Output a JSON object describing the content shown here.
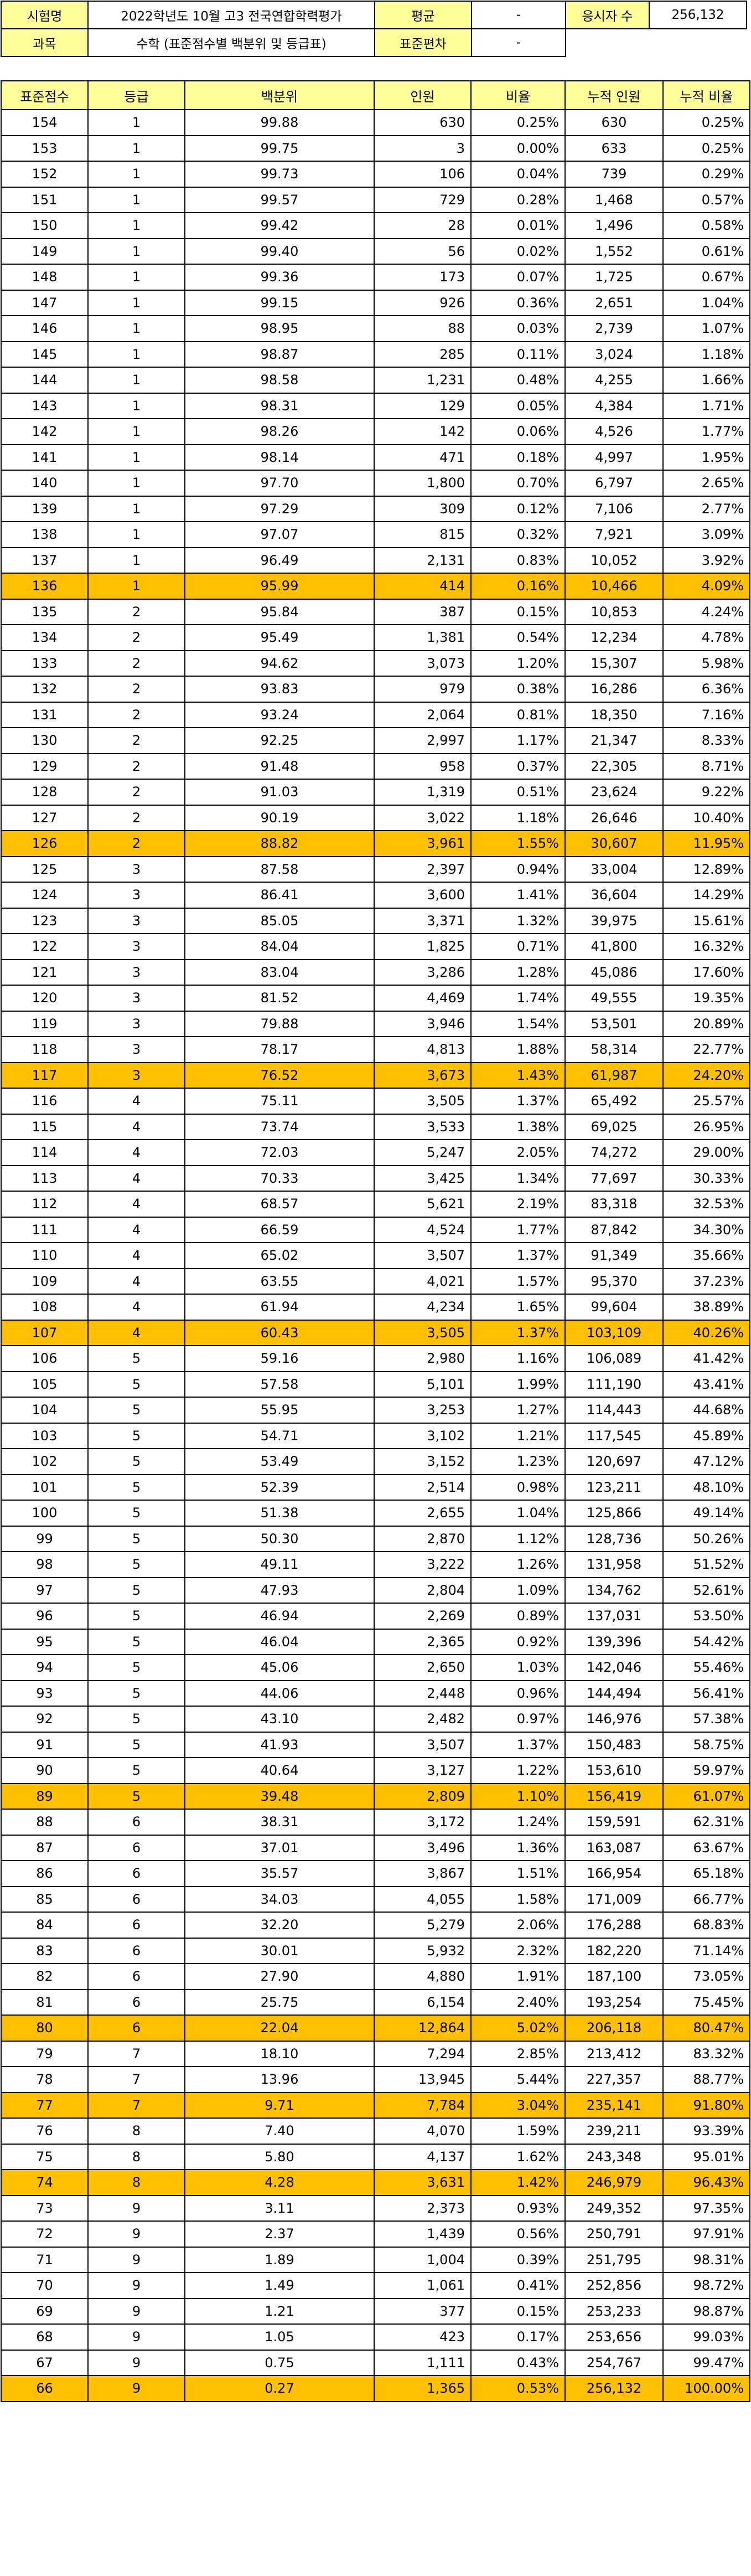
{
  "info": {
    "exam_label": "시험명",
    "exam_value": "2022학년도 10월 고3 전국연합학력평가",
    "mean_label": "평균",
    "mean_value": "-",
    "takers_label": "응시자 수",
    "takers_value": "256,132",
    "subject_label": "과목",
    "subject_value": "수학 (표준점수별 백분위 및 등급표)",
    "sd_label": "표준편차",
    "sd_value": "-"
  },
  "headers": [
    "표준점수",
    "등급",
    "백분위",
    "인원",
    "비율",
    "누적 인원",
    "누적 비율"
  ],
  "highlight_color": "#FFC000",
  "header_color": "#FFFF99",
  "rows": [
    {
      "score": "154",
      "grade": "1",
      "pct": "99.88",
      "count": "630",
      "ratio": "0.25%",
      "cum": "630",
      "cum_ratio": "0.25%",
      "hl": false
    },
    {
      "score": "153",
      "grade": "1",
      "pct": "99.75",
      "count": "3",
      "ratio": "0.00%",
      "cum": "633",
      "cum_ratio": "0.25%",
      "hl": false
    },
    {
      "score": "152",
      "grade": "1",
      "pct": "99.73",
      "count": "106",
      "ratio": "0.04%",
      "cum": "739",
      "cum_ratio": "0.29%",
      "hl": false
    },
    {
      "score": "151",
      "grade": "1",
      "pct": "99.57",
      "count": "729",
      "ratio": "0.28%",
      "cum": "1,468",
      "cum_ratio": "0.57%",
      "hl": false
    },
    {
      "score": "150",
      "grade": "1",
      "pct": "99.42",
      "count": "28",
      "ratio": "0.01%",
      "cum": "1,496",
      "cum_ratio": "0.58%",
      "hl": false
    },
    {
      "score": "149",
      "grade": "1",
      "pct": "99.40",
      "count": "56",
      "ratio": "0.02%",
      "cum": "1,552",
      "cum_ratio": "0.61%",
      "hl": false
    },
    {
      "score": "148",
      "grade": "1",
      "pct": "99.36",
      "count": "173",
      "ratio": "0.07%",
      "cum": "1,725",
      "cum_ratio": "0.67%",
      "hl": false
    },
    {
      "score": "147",
      "grade": "1",
      "pct": "99.15",
      "count": "926",
      "ratio": "0.36%",
      "cum": "2,651",
      "cum_ratio": "1.04%",
      "hl": false
    },
    {
      "score": "146",
      "grade": "1",
      "pct": "98.95",
      "count": "88",
      "ratio": "0.03%",
      "cum": "2,739",
      "cum_ratio": "1.07%",
      "hl": false
    },
    {
      "score": "145",
      "grade": "1",
      "pct": "98.87",
      "count": "285",
      "ratio": "0.11%",
      "cum": "3,024",
      "cum_ratio": "1.18%",
      "hl": false
    },
    {
      "score": "144",
      "grade": "1",
      "pct": "98.58",
      "count": "1,231",
      "ratio": "0.48%",
      "cum": "4,255",
      "cum_ratio": "1.66%",
      "hl": false
    },
    {
      "score": "143",
      "grade": "1",
      "pct": "98.31",
      "count": "129",
      "ratio": "0.05%",
      "cum": "4,384",
      "cum_ratio": "1.71%",
      "hl": false
    },
    {
      "score": "142",
      "grade": "1",
      "pct": "98.26",
      "count": "142",
      "ratio": "0.06%",
      "cum": "4,526",
      "cum_ratio": "1.77%",
      "hl": false
    },
    {
      "score": "141",
      "grade": "1",
      "pct": "98.14",
      "count": "471",
      "ratio": "0.18%",
      "cum": "4,997",
      "cum_ratio": "1.95%",
      "hl": false
    },
    {
      "score": "140",
      "grade": "1",
      "pct": "97.70",
      "count": "1,800",
      "ratio": "0.70%",
      "cum": "6,797",
      "cum_ratio": "2.65%",
      "hl": false
    },
    {
      "score": "139",
      "grade": "1",
      "pct": "97.29",
      "count": "309",
      "ratio": "0.12%",
      "cum": "7,106",
      "cum_ratio": "2.77%",
      "hl": false
    },
    {
      "score": "138",
      "grade": "1",
      "pct": "97.07",
      "count": "815",
      "ratio": "0.32%",
      "cum": "7,921",
      "cum_ratio": "3.09%",
      "hl": false
    },
    {
      "score": "137",
      "grade": "1",
      "pct": "96.49",
      "count": "2,131",
      "ratio": "0.83%",
      "cum": "10,052",
      "cum_ratio": "3.92%",
      "hl": false
    },
    {
      "score": "136",
      "grade": "1",
      "pct": "95.99",
      "count": "414",
      "ratio": "0.16%",
      "cum": "10,466",
      "cum_ratio": "4.09%",
      "hl": true
    },
    {
      "score": "135",
      "grade": "2",
      "pct": "95.84",
      "count": "387",
      "ratio": "0.15%",
      "cum": "10,853",
      "cum_ratio": "4.24%",
      "hl": false
    },
    {
      "score": "134",
      "grade": "2",
      "pct": "95.49",
      "count": "1,381",
      "ratio": "0.54%",
      "cum": "12,234",
      "cum_ratio": "4.78%",
      "hl": false
    },
    {
      "score": "133",
      "grade": "2",
      "pct": "94.62",
      "count": "3,073",
      "ratio": "1.20%",
      "cum": "15,307",
      "cum_ratio": "5.98%",
      "hl": false
    },
    {
      "score": "132",
      "grade": "2",
      "pct": "93.83",
      "count": "979",
      "ratio": "0.38%",
      "cum": "16,286",
      "cum_ratio": "6.36%",
      "hl": false
    },
    {
      "score": "131",
      "grade": "2",
      "pct": "93.24",
      "count": "2,064",
      "ratio": "0.81%",
      "cum": "18,350",
      "cum_ratio": "7.16%",
      "hl": false
    },
    {
      "score": "130",
      "grade": "2",
      "pct": "92.25",
      "count": "2,997",
      "ratio": "1.17%",
      "cum": "21,347",
      "cum_ratio": "8.33%",
      "hl": false
    },
    {
      "score": "129",
      "grade": "2",
      "pct": "91.48",
      "count": "958",
      "ratio": "0.37%",
      "cum": "22,305",
      "cum_ratio": "8.71%",
      "hl": false
    },
    {
      "score": "128",
      "grade": "2",
      "pct": "91.03",
      "count": "1,319",
      "ratio": "0.51%",
      "cum": "23,624",
      "cum_ratio": "9.22%",
      "hl": false
    },
    {
      "score": "127",
      "grade": "2",
      "pct": "90.19",
      "count": "3,022",
      "ratio": "1.18%",
      "cum": "26,646",
      "cum_ratio": "10.40%",
      "hl": false
    },
    {
      "score": "126",
      "grade": "2",
      "pct": "88.82",
      "count": "3,961",
      "ratio": "1.55%",
      "cum": "30,607",
      "cum_ratio": "11.95%",
      "hl": true
    },
    {
      "score": "125",
      "grade": "3",
      "pct": "87.58",
      "count": "2,397",
      "ratio": "0.94%",
      "cum": "33,004",
      "cum_ratio": "12.89%",
      "hl": false
    },
    {
      "score": "124",
      "grade": "3",
      "pct": "86.41",
      "count": "3,600",
      "ratio": "1.41%",
      "cum": "36,604",
      "cum_ratio": "14.29%",
      "hl": false
    },
    {
      "score": "123",
      "grade": "3",
      "pct": "85.05",
      "count": "3,371",
      "ratio": "1.32%",
      "cum": "39,975",
      "cum_ratio": "15.61%",
      "hl": false
    },
    {
      "score": "122",
      "grade": "3",
      "pct": "84.04",
      "count": "1,825",
      "ratio": "0.71%",
      "cum": "41,800",
      "cum_ratio": "16.32%",
      "hl": false
    },
    {
      "score": "121",
      "grade": "3",
      "pct": "83.04",
      "count": "3,286",
      "ratio": "1.28%",
      "cum": "45,086",
      "cum_ratio": "17.60%",
      "hl": false
    },
    {
      "score": "120",
      "grade": "3",
      "pct": "81.52",
      "count": "4,469",
      "ratio": "1.74%",
      "cum": "49,555",
      "cum_ratio": "19.35%",
      "hl": false
    },
    {
      "score": "119",
      "grade": "3",
      "pct": "79.88",
      "count": "3,946",
      "ratio": "1.54%",
      "cum": "53,501",
      "cum_ratio": "20.89%",
      "hl": false
    },
    {
      "score": "118",
      "grade": "3",
      "pct": "78.17",
      "count": "4,813",
      "ratio": "1.88%",
      "cum": "58,314",
      "cum_ratio": "22.77%",
      "hl": false
    },
    {
      "score": "117",
      "grade": "3",
      "pct": "76.52",
      "count": "3,673",
      "ratio": "1.43%",
      "cum": "61,987",
      "cum_ratio": "24.20%",
      "hl": true
    },
    {
      "score": "116",
      "grade": "4",
      "pct": "75.11",
      "count": "3,505",
      "ratio": "1.37%",
      "cum": "65,492",
      "cum_ratio": "25.57%",
      "hl": false
    },
    {
      "score": "115",
      "grade": "4",
      "pct": "73.74",
      "count": "3,533",
      "ratio": "1.38%",
      "cum": "69,025",
      "cum_ratio": "26.95%",
      "hl": false
    },
    {
      "score": "114",
      "grade": "4",
      "pct": "72.03",
      "count": "5,247",
      "ratio": "2.05%",
      "cum": "74,272",
      "cum_ratio": "29.00%",
      "hl": false
    },
    {
      "score": "113",
      "grade": "4",
      "pct": "70.33",
      "count": "3,425",
      "ratio": "1.34%",
      "cum": "77,697",
      "cum_ratio": "30.33%",
      "hl": false
    },
    {
      "score": "112",
      "grade": "4",
      "pct": "68.57",
      "count": "5,621",
      "ratio": "2.19%",
      "cum": "83,318",
      "cum_ratio": "32.53%",
      "hl": false
    },
    {
      "score": "111",
      "grade": "4",
      "pct": "66.59",
      "count": "4,524",
      "ratio": "1.77%",
      "cum": "87,842",
      "cum_ratio": "34.30%",
      "hl": false
    },
    {
      "score": "110",
      "grade": "4",
      "pct": "65.02",
      "count": "3,507",
      "ratio": "1.37%",
      "cum": "91,349",
      "cum_ratio": "35.66%",
      "hl": false
    },
    {
      "score": "109",
      "grade": "4",
      "pct": "63.55",
      "count": "4,021",
      "ratio": "1.57%",
      "cum": "95,370",
      "cum_ratio": "37.23%",
      "hl": false
    },
    {
      "score": "108",
      "grade": "4",
      "pct": "61.94",
      "count": "4,234",
      "ratio": "1.65%",
      "cum": "99,604",
      "cum_ratio": "38.89%",
      "hl": false
    },
    {
      "score": "107",
      "grade": "4",
      "pct": "60.43",
      "count": "3,505",
      "ratio": "1.37%",
      "cum": "103,109",
      "cum_ratio": "40.26%",
      "hl": true
    },
    {
      "score": "106",
      "grade": "5",
      "pct": "59.16",
      "count": "2,980",
      "ratio": "1.16%",
      "cum": "106,089",
      "cum_ratio": "41.42%",
      "hl": false
    },
    {
      "score": "105",
      "grade": "5",
      "pct": "57.58",
      "count": "5,101",
      "ratio": "1.99%",
      "cum": "111,190",
      "cum_ratio": "43.41%",
      "hl": false
    },
    {
      "score": "104",
      "grade": "5",
      "pct": "55.95",
      "count": "3,253",
      "ratio": "1.27%",
      "cum": "114,443",
      "cum_ratio": "44.68%",
      "hl": false
    },
    {
      "score": "103",
      "grade": "5",
      "pct": "54.71",
      "count": "3,102",
      "ratio": "1.21%",
      "cum": "117,545",
      "cum_ratio": "45.89%",
      "hl": false
    },
    {
      "score": "102",
      "grade": "5",
      "pct": "53.49",
      "count": "3,152",
      "ratio": "1.23%",
      "cum": "120,697",
      "cum_ratio": "47.12%",
      "hl": false
    },
    {
      "score": "101",
      "grade": "5",
      "pct": "52.39",
      "count": "2,514",
      "ratio": "0.98%",
      "cum": "123,211",
      "cum_ratio": "48.10%",
      "hl": false
    },
    {
      "score": "100",
      "grade": "5",
      "pct": "51.38",
      "count": "2,655",
      "ratio": "1.04%",
      "cum": "125,866",
      "cum_ratio": "49.14%",
      "hl": false
    },
    {
      "score": "99",
      "grade": "5",
      "pct": "50.30",
      "count": "2,870",
      "ratio": "1.12%",
      "cum": "128,736",
      "cum_ratio": "50.26%",
      "hl": false
    },
    {
      "score": "98",
      "grade": "5",
      "pct": "49.11",
      "count": "3,222",
      "ratio": "1.26%",
      "cum": "131,958",
      "cum_ratio": "51.52%",
      "hl": false
    },
    {
      "score": "97",
      "grade": "5",
      "pct": "47.93",
      "count": "2,804",
      "ratio": "1.09%",
      "cum": "134,762",
      "cum_ratio": "52.61%",
      "hl": false
    },
    {
      "score": "96",
      "grade": "5",
      "pct": "46.94",
      "count": "2,269",
      "ratio": "0.89%",
      "cum": "137,031",
      "cum_ratio": "53.50%",
      "hl": false
    },
    {
      "score": "95",
      "grade": "5",
      "pct": "46.04",
      "count": "2,365",
      "ratio": "0.92%",
      "cum": "139,396",
      "cum_ratio": "54.42%",
      "hl": false
    },
    {
      "score": "94",
      "grade": "5",
      "pct": "45.06",
      "count": "2,650",
      "ratio": "1.03%",
      "cum": "142,046",
      "cum_ratio": "55.46%",
      "hl": false
    },
    {
      "score": "93",
      "grade": "5",
      "pct": "44.06",
      "count": "2,448",
      "ratio": "0.96%",
      "cum": "144,494",
      "cum_ratio": "56.41%",
      "hl": false
    },
    {
      "score": "92",
      "grade": "5",
      "pct": "43.10",
      "count": "2,482",
      "ratio": "0.97%",
      "cum": "146,976",
      "cum_ratio": "57.38%",
      "hl": false
    },
    {
      "score": "91",
      "grade": "5",
      "pct": "41.93",
      "count": "3,507",
      "ratio": "1.37%",
      "cum": "150,483",
      "cum_ratio": "58.75%",
      "hl": false
    },
    {
      "score": "90",
      "grade": "5",
      "pct": "40.64",
      "count": "3,127",
      "ratio": "1.22%",
      "cum": "153,610",
      "cum_ratio": "59.97%",
      "hl": false
    },
    {
      "score": "89",
      "grade": "5",
      "pct": "39.48",
      "count": "2,809",
      "ratio": "1.10%",
      "cum": "156,419",
      "cum_ratio": "61.07%",
      "hl": true
    },
    {
      "score": "88",
      "grade": "6",
      "pct": "38.31",
      "count": "3,172",
      "ratio": "1.24%",
      "cum": "159,591",
      "cum_ratio": "62.31%",
      "hl": false
    },
    {
      "score": "87",
      "grade": "6",
      "pct": "37.01",
      "count": "3,496",
      "ratio": "1.36%",
      "cum": "163,087",
      "cum_ratio": "63.67%",
      "hl": false
    },
    {
      "score": "86",
      "grade": "6",
      "pct": "35.57",
      "count": "3,867",
      "ratio": "1.51%",
      "cum": "166,954",
      "cum_ratio": "65.18%",
      "hl": false
    },
    {
      "score": "85",
      "grade": "6",
      "pct": "34.03",
      "count": "4,055",
      "ratio": "1.58%",
      "cum": "171,009",
      "cum_ratio": "66.77%",
      "hl": false
    },
    {
      "score": "84",
      "grade": "6",
      "pct": "32.20",
      "count": "5,279",
      "ratio": "2.06%",
      "cum": "176,288",
      "cum_ratio": "68.83%",
      "hl": false
    },
    {
      "score": "83",
      "grade": "6",
      "pct": "30.01",
      "count": "5,932",
      "ratio": "2.32%",
      "cum": "182,220",
      "cum_ratio": "71.14%",
      "hl": false
    },
    {
      "score": "82",
      "grade": "6",
      "pct": "27.90",
      "count": "4,880",
      "ratio": "1.91%",
      "cum": "187,100",
      "cum_ratio": "73.05%",
      "hl": false
    },
    {
      "score": "81",
      "grade": "6",
      "pct": "25.75",
      "count": "6,154",
      "ratio": "2.40%",
      "cum": "193,254",
      "cum_ratio": "75.45%",
      "hl": false
    },
    {
      "score": "80",
      "grade": "6",
      "pct": "22.04",
      "count": "12,864",
      "ratio": "5.02%",
      "cum": "206,118",
      "cum_ratio": "80.47%",
      "hl": true
    },
    {
      "score": "79",
      "grade": "7",
      "pct": "18.10",
      "count": "7,294",
      "ratio": "2.85%",
      "cum": "213,412",
      "cum_ratio": "83.32%",
      "hl": false
    },
    {
      "score": "78",
      "grade": "7",
      "pct": "13.96",
      "count": "13,945",
      "ratio": "5.44%",
      "cum": "227,357",
      "cum_ratio": "88.77%",
      "hl": false
    },
    {
      "score": "77",
      "grade": "7",
      "pct": "9.71",
      "count": "7,784",
      "ratio": "3.04%",
      "cum": "235,141",
      "cum_ratio": "91.80%",
      "hl": true
    },
    {
      "score": "76",
      "grade": "8",
      "pct": "7.40",
      "count": "4,070",
      "ratio": "1.59%",
      "cum": "239,211",
      "cum_ratio": "93.39%",
      "hl": false
    },
    {
      "score": "75",
      "grade": "8",
      "pct": "5.80",
      "count": "4,137",
      "ratio": "1.62%",
      "cum": "243,348",
      "cum_ratio": "95.01%",
      "hl": false
    },
    {
      "score": "74",
      "grade": "8",
      "pct": "4.28",
      "count": "3,631",
      "ratio": "1.42%",
      "cum": "246,979",
      "cum_ratio": "96.43%",
      "hl": true
    },
    {
      "score": "73",
      "grade": "9",
      "pct": "3.11",
      "count": "2,373",
      "ratio": "0.93%",
      "cum": "249,352",
      "cum_ratio": "97.35%",
      "hl": false
    },
    {
      "score": "72",
      "grade": "9",
      "pct": "2.37",
      "count": "1,439",
      "ratio": "0.56%",
      "cum": "250,791",
      "cum_ratio": "97.91%",
      "hl": false
    },
    {
      "score": "71",
      "grade": "9",
      "pct": "1.89",
      "count": "1,004",
      "ratio": "0.39%",
      "cum": "251,795",
      "cum_ratio": "98.31%",
      "hl": false
    },
    {
      "score": "70",
      "grade": "9",
      "pct": "1.49",
      "count": "1,061",
      "ratio": "0.41%",
      "cum": "252,856",
      "cum_ratio": "98.72%",
      "hl": false
    },
    {
      "score": "69",
      "grade": "9",
      "pct": "1.21",
      "count": "377",
      "ratio": "0.15%",
      "cum": "253,233",
      "cum_ratio": "98.87%",
      "hl": false
    },
    {
      "score": "68",
      "grade": "9",
      "pct": "1.05",
      "count": "423",
      "ratio": "0.17%",
      "cum": "253,656",
      "cum_ratio": "99.03%",
      "hl": false
    },
    {
      "score": "67",
      "grade": "9",
      "pct": "0.75",
      "count": "1,111",
      "ratio": "0.43%",
      "cum": "254,767",
      "cum_ratio": "99.47%",
      "hl": false
    },
    {
      "score": "66",
      "grade": "9",
      "pct": "0.27",
      "count": "1,365",
      "ratio": "0.53%",
      "cum": "256,132",
      "cum_ratio": "100.00%",
      "hl": true
    }
  ]
}
